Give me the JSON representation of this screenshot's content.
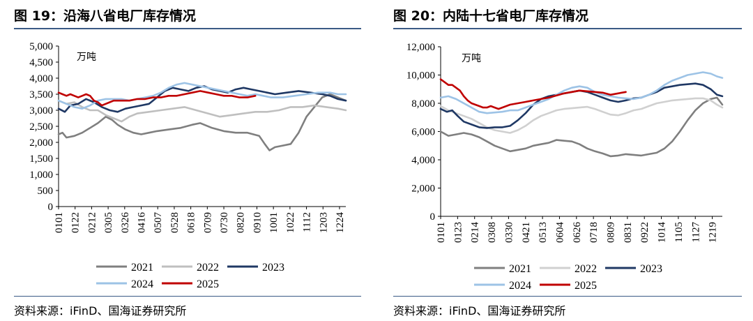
{
  "source_label": "资料来源：iFinD、国海证券研究所",
  "chart_data": [
    {
      "type": "line",
      "title": "图 19：沿海八省电厂库存情况",
      "ylabel": "万吨",
      "ylim": [
        0,
        5000
      ],
      "yticks": [
        0,
        500,
        1000,
        1500,
        2000,
        2500,
        3000,
        3500,
        4000,
        4500,
        5000
      ],
      "ytick_labels": [
        "0",
        "500",
        "1,000",
        "1,500",
        "2,000",
        "2,500",
        "3,000",
        "3,500",
        "4,000",
        "4,500",
        "5,000"
      ],
      "xlim": [
        0,
        365
      ],
      "xticks": [
        0,
        21,
        42,
        63,
        84,
        105,
        126,
        147,
        168,
        189,
        210,
        231,
        252,
        273,
        294,
        315,
        336,
        357
      ],
      "xtick_labels": [
        "0101",
        "0122",
        "0212",
        "0305",
        "0326",
        "0416",
        "0507",
        "0528",
        "0618",
        "0709",
        "0730",
        "0820",
        "0910",
        "1001",
        "1022",
        "1112",
        "1203",
        "1224"
      ],
      "legend": [
        "2021",
        "2022",
        "2023",
        "2024",
        "2025"
      ],
      "series": [
        {
          "name": "2021",
          "color": "#7f7f7f",
          "x": [
            0,
            5,
            10,
            20,
            30,
            40,
            50,
            60,
            68,
            75,
            85,
            95,
            105,
            115,
            125,
            140,
            155,
            170,
            180,
            195,
            210,
            225,
            240,
            255,
            262,
            268,
            275,
            285,
            295,
            305,
            315,
            325,
            335,
            345,
            355,
            365
          ],
          "y": [
            2250,
            2300,
            2150,
            2200,
            2300,
            2450,
            2600,
            2800,
            2700,
            2550,
            2400,
            2300,
            2250,
            2300,
            2350,
            2400,
            2450,
            2550,
            2600,
            2450,
            2350,
            2300,
            2300,
            2200,
            1950,
            1750,
            1850,
            1900,
            1950,
            2300,
            2800,
            3100,
            3400,
            3500,
            3400,
            3300
          ]
        },
        {
          "name": "2022",
          "color": "#bfbfbf",
          "x": [
            0,
            10,
            20,
            30,
            40,
            50,
            60,
            70,
            80,
            90,
            100,
            115,
            130,
            145,
            160,
            175,
            190,
            205,
            220,
            235,
            250,
            265,
            280,
            295,
            310,
            325,
            340,
            355,
            365
          ],
          "y": [
            3300,
            3200,
            3250,
            3100,
            3000,
            3000,
            2850,
            2750,
            2650,
            2800,
            2900,
            2950,
            3000,
            3050,
            3100,
            3000,
            2900,
            2800,
            2850,
            2900,
            2950,
            2950,
            3000,
            3100,
            3100,
            3150,
            3100,
            3050,
            3000
          ]
        },
        {
          "name": "2023",
          "color": "#1f3864",
          "x": [
            0,
            8,
            15,
            25,
            35,
            45,
            55,
            65,
            75,
            85,
            95,
            105,
            115,
            125,
            135,
            145,
            155,
            165,
            175,
            185,
            195,
            205,
            215,
            225,
            235,
            245,
            255,
            265,
            275,
            290,
            305,
            320,
            335,
            345,
            355,
            365
          ],
          "y": [
            3050,
            2950,
            3150,
            3200,
            3350,
            3250,
            3100,
            3000,
            2950,
            3050,
            3100,
            3150,
            3200,
            3400,
            3600,
            3700,
            3650,
            3600,
            3700,
            3750,
            3650,
            3600,
            3550,
            3650,
            3700,
            3650,
            3600,
            3550,
            3500,
            3550,
            3600,
            3550,
            3500,
            3450,
            3350,
            3300
          ]
        },
        {
          "name": "2024",
          "color": "#9dc3e6",
          "x": [
            0,
            10,
            20,
            30,
            40,
            50,
            60,
            70,
            80,
            90,
            100,
            110,
            120,
            130,
            140,
            150,
            160,
            170,
            180,
            190,
            200,
            210,
            220,
            230,
            240,
            250,
            260,
            270,
            285,
            300,
            315,
            330,
            345,
            355,
            365
          ],
          "y": [
            3300,
            3200,
            3100,
            3050,
            3150,
            3300,
            3350,
            3350,
            3350,
            3300,
            3350,
            3400,
            3450,
            3550,
            3700,
            3800,
            3850,
            3800,
            3750,
            3700,
            3650,
            3600,
            3550,
            3500,
            3450,
            3500,
            3450,
            3400,
            3400,
            3450,
            3500,
            3550,
            3550,
            3500,
            3500
          ]
        },
        {
          "name": "2025",
          "color": "#c00000",
          "x": [
            0,
            5,
            10,
            15,
            20,
            25,
            30,
            35,
            40,
            45,
            50,
            55,
            60,
            65,
            70,
            80,
            90,
            100,
            110,
            120,
            130,
            140,
            150,
            160,
            170,
            180,
            190,
            200,
            210,
            220,
            230,
            240,
            250
          ],
          "y": [
            3550,
            3500,
            3450,
            3500,
            3450,
            3400,
            3450,
            3500,
            3450,
            3300,
            3250,
            3150,
            3200,
            3250,
            3300,
            3300,
            3300,
            3350,
            3350,
            3400,
            3400,
            3450,
            3450,
            3500,
            3550,
            3600,
            3550,
            3500,
            3450,
            3450,
            3400,
            3400,
            3450
          ]
        }
      ]
    },
    {
      "type": "line",
      "title": "图 20：内陆十七省电厂库存情况",
      "ylabel": "万吨",
      "ylim": [
        0,
        12000
      ],
      "yticks": [
        0,
        2000,
        4000,
        6000,
        8000,
        10000,
        12000
      ],
      "ytick_labels": [
        "0",
        "2,000",
        "4,000",
        "6,000",
        "8,000",
        "10,000",
        "12,000"
      ],
      "xlim": [
        0,
        365
      ],
      "xticks": [
        0,
        22,
        44,
        66,
        88,
        110,
        132,
        154,
        176,
        198,
        220,
        242,
        264,
        286,
        308,
        330,
        352
      ],
      "xtick_labels": [
        "0101",
        "0123",
        "0214",
        "0308",
        "0330",
        "0421",
        "0513",
        "0604",
        "0626",
        "0718",
        "0809",
        "0831",
        "0922",
        "1014",
        "1105",
        "1127",
        "1219"
      ],
      "legend": [
        "2021",
        "2022",
        "2023",
        "2024",
        "2025"
      ],
      "series": [
        {
          "name": "2021",
          "color": "#7f7f7f",
          "x": [
            0,
            10,
            20,
            30,
            40,
            50,
            60,
            70,
            80,
            90,
            100,
            110,
            120,
            130,
            140,
            150,
            160,
            170,
            180,
            190,
            200,
            210,
            220,
            230,
            240,
            250,
            260,
            270,
            280,
            290,
            300,
            310,
            320,
            330,
            340,
            350,
            358,
            365
          ],
          "y": [
            6000,
            5700,
            5800,
            5900,
            5800,
            5600,
            5300,
            5000,
            4800,
            4600,
            4700,
            4800,
            5000,
            5100,
            5200,
            5400,
            5350,
            5300,
            5100,
            4800,
            4600,
            4450,
            4250,
            4300,
            4400,
            4350,
            4300,
            4400,
            4500,
            4800,
            5300,
            6000,
            6800,
            7500,
            8000,
            8300,
            8400,
            7900
          ]
        },
        {
          "name": "2022",
          "color": "#d0d0d0",
          "x": [
            0,
            10,
            20,
            30,
            40,
            50,
            60,
            70,
            80,
            90,
            100,
            110,
            120,
            130,
            140,
            150,
            160,
            170,
            180,
            190,
            200,
            210,
            220,
            230,
            240,
            250,
            260,
            270,
            280,
            290,
            300,
            310,
            320,
            330,
            340,
            350,
            358,
            365
          ],
          "y": [
            7800,
            7500,
            7300,
            7100,
            6900,
            6600,
            6300,
            6100,
            6000,
            5900,
            6100,
            6400,
            6800,
            7100,
            7300,
            7500,
            7600,
            7650,
            7700,
            7750,
            7600,
            7400,
            7200,
            7150,
            7300,
            7500,
            7600,
            7800,
            8000,
            8100,
            8200,
            8250,
            8300,
            8350,
            8350,
            8200,
            7900,
            7700
          ]
        },
        {
          "name": "2023",
          "color": "#1f3864",
          "x": [
            0,
            8,
            15,
            22,
            30,
            40,
            50,
            60,
            70,
            80,
            90,
            100,
            110,
            120,
            130,
            140,
            150,
            160,
            170,
            180,
            190,
            200,
            210,
            220,
            230,
            240,
            250,
            260,
            270,
            280,
            290,
            300,
            310,
            320,
            330,
            340,
            350,
            358,
            365
          ],
          "y": [
            7600,
            7400,
            7500,
            7100,
            6700,
            6500,
            6300,
            6250,
            6300,
            6300,
            6400,
            6800,
            7300,
            7900,
            8300,
            8500,
            8600,
            8700,
            8800,
            8900,
            8800,
            8600,
            8400,
            8200,
            8100,
            8200,
            8350,
            8400,
            8600,
            8800,
            9100,
            9200,
            9300,
            9350,
            9400,
            9300,
            9000,
            8600,
            8500
          ]
        },
        {
          "name": "2024",
          "color": "#9dc3e6",
          "x": [
            0,
            10,
            20,
            30,
            40,
            50,
            60,
            70,
            80,
            90,
            100,
            110,
            120,
            130,
            140,
            150,
            160,
            170,
            180,
            190,
            200,
            210,
            220,
            230,
            240,
            250,
            260,
            270,
            280,
            290,
            300,
            310,
            320,
            330,
            340,
            350,
            358,
            365
          ],
          "y": [
            8400,
            8500,
            8300,
            8000,
            7700,
            7400,
            7300,
            7350,
            7400,
            7500,
            7500,
            7700,
            7900,
            8100,
            8300,
            8600,
            8900,
            9100,
            9200,
            9100,
            8800,
            8600,
            8500,
            8400,
            8350,
            8300,
            8400,
            8600,
            8900,
            9300,
            9600,
            9800,
            10000,
            10100,
            10200,
            10100,
            9900,
            9800
          ]
        },
        {
          "name": "2025",
          "color": "#c00000",
          "x": [
            0,
            5,
            10,
            15,
            20,
            25,
            30,
            35,
            40,
            45,
            50,
            55,
            60,
            65,
            70,
            75,
            80,
            90,
            100,
            110,
            120,
            130,
            140,
            150,
            160,
            170,
            180,
            190,
            200,
            210,
            220,
            230,
            240
          ],
          "y": [
            9700,
            9500,
            9300,
            9300,
            9100,
            8900,
            8500,
            8200,
            8000,
            7900,
            7800,
            7700,
            7700,
            7800,
            7700,
            7600,
            7700,
            7900,
            8000,
            8100,
            8200,
            8300,
            8400,
            8550,
            8700,
            8800,
            8900,
            8850,
            8800,
            8750,
            8600,
            8700,
            8800
          ]
        }
      ]
    }
  ]
}
